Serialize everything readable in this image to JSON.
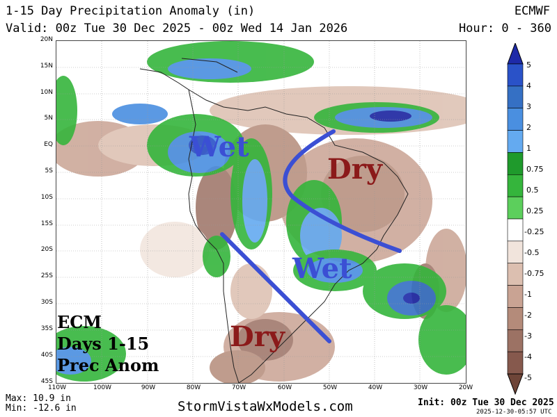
{
  "header": {
    "title": "1-15 Day Precipitation Anomaly (in)",
    "model": "ECMWF",
    "valid": "Valid: 00z Tue 30 Dec 2025 - 00z Wed 14 Jan 2026",
    "hour": "Hour: 0 - 360"
  },
  "map": {
    "lat_labels": [
      "20N",
      "15N",
      "10N",
      "5N",
      "EQ",
      "5S",
      "10S",
      "15S",
      "20S",
      "25S",
      "30S",
      "35S",
      "40S",
      "45S"
    ],
    "lon_labels": [
      "110W",
      "100W",
      "90W",
      "80W",
      "70W",
      "60W",
      "50W",
      "40W",
      "30W",
      "20W"
    ]
  },
  "annotations": {
    "wet_north": "Wet",
    "dry_north": "Dry",
    "wet_south": "Wet",
    "dry_south": "Dry",
    "caption_line1": "ECM",
    "caption_line2": "Days 1-15",
    "caption_line3": "Prec Anom"
  },
  "colorbar": {
    "labels": [
      "5",
      "4",
      "3",
      "2",
      "1",
      "0.75",
      "0.5",
      "0.25",
      "-0.25",
      "-0.5",
      "-0.75",
      "-1",
      "-2",
      "-3",
      "-4",
      "-5"
    ],
    "colors": [
      "#1e2aa8",
      "#2a52c8",
      "#3570c4",
      "#4a8fe0",
      "#64aaf0",
      "#1f9a2c",
      "#35b53c",
      "#5ccf5c",
      "#ffffff",
      "#f1e4dc",
      "#dcbfb0",
      "#c9a393",
      "#b48b7a",
      "#9c7264",
      "#86594d",
      "#6e4538"
    ]
  },
  "footer": {
    "max": "Max: 10.9 in",
    "min": "Min: -12.6 in",
    "site": "StormVistaWxModels.com",
    "init": "Init: 00z Tue 30 Dec 2025",
    "stamp": "2025-12-30-05:57 UTC"
  }
}
